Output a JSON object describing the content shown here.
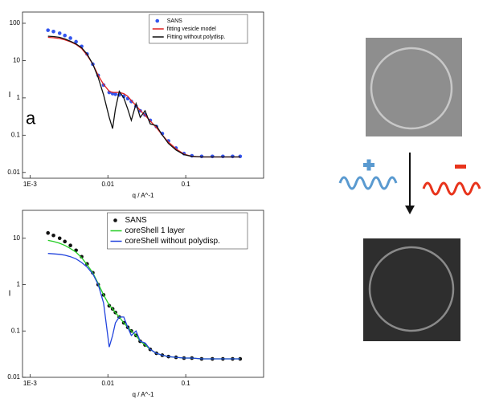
{
  "chart_data": [
    {
      "type": "line",
      "annotation": "a",
      "xlabel": "q / A^-1",
      "ylabel": "I",
      "xscale": "log",
      "yscale": "log",
      "xlim": [
        0.0008,
        1
      ],
      "ylim": [
        0.007,
        200
      ],
      "xticks": [
        {
          "value": 0.001,
          "label": "1E-3"
        },
        0.01,
        0.1
      ],
      "yticks": [
        0.01,
        0.1,
        1,
        10,
        100
      ],
      "legend": "upper right",
      "x": [
        0.0017,
        0.002,
        0.0024,
        0.0028,
        0.0033,
        0.0039,
        0.0046,
        0.0054,
        0.0064,
        0.0075,
        0.0088,
        0.0104,
        0.0115,
        0.0125,
        0.014,
        0.016,
        0.018,
        0.02,
        0.023,
        0.026,
        0.03,
        0.035,
        0.042,
        0.05,
        0.06,
        0.075,
        0.095,
        0.12,
        0.16,
        0.22,
        0.3,
        0.4,
        0.5
      ],
      "series": [
        {
          "name": "SANS",
          "color": "#3355ee",
          "marker": true,
          "values": [
            65,
            60,
            54,
            47,
            40,
            32,
            24,
            15,
            8,
            4,
            2.2,
            1.4,
            1.3,
            1.25,
            1.2,
            1.1,
            0.95,
            0.8,
            0.6,
            0.45,
            0.35,
            0.25,
            0.17,
            0.11,
            0.07,
            0.045,
            0.032,
            0.028,
            0.027,
            0.027,
            0.027,
            0.027,
            0.027
          ]
        },
        {
          "name": "fitting vesicle model",
          "color": "#e02020",
          "marker": false,
          "values": [
            42,
            41,
            39,
            36,
            32,
            27,
            21,
            14,
            8,
            4,
            2.3,
            1.5,
            1.4,
            1.4,
            1.4,
            1.3,
            1.1,
            0.85,
            0.62,
            0.46,
            0.34,
            0.24,
            0.16,
            0.1,
            0.065,
            0.043,
            0.031,
            0.027,
            0.026,
            0.026,
            0.026,
            0.026,
            0.026
          ]
        },
        {
          "name": "Fitting without polydisp.",
          "color": "#111111",
          "marker": false,
          "values": [
            45,
            44,
            42,
            38,
            33,
            28,
            22,
            15,
            8,
            3.5,
            1.2,
            0.3,
            0.15,
            0.5,
            1.5,
            1.0,
            0.5,
            0.25,
            0.7,
            0.3,
            0.45,
            0.2,
            0.18,
            0.1,
            0.06,
            0.04,
            0.03,
            0.027,
            0.026,
            0.026,
            0.026,
            0.026,
            0.026
          ]
        }
      ]
    },
    {
      "type": "line",
      "xlabel": "q / A^-1",
      "ylabel": "I",
      "xscale": "log",
      "yscale": "log",
      "xlim": [
        0.0008,
        1
      ],
      "ylim": [
        0.01,
        40
      ],
      "xticks": [
        {
          "value": 0.001,
          "label": "1E-3"
        },
        0.01,
        0.1
      ],
      "yticks": [
        0.01,
        0.1,
        1,
        10
      ],
      "legend": "upper right",
      "x": [
        0.0017,
        0.002,
        0.0024,
        0.0028,
        0.0033,
        0.0039,
        0.0046,
        0.0054,
        0.0064,
        0.0075,
        0.0088,
        0.0104,
        0.0115,
        0.0125,
        0.014,
        0.016,
        0.018,
        0.02,
        0.023,
        0.026,
        0.03,
        0.035,
        0.042,
        0.05,
        0.06,
        0.075,
        0.095,
        0.12,
        0.16,
        0.22,
        0.3,
        0.4,
        0.5
      ],
      "series": [
        {
          "name": "SANS",
          "color": "#111111",
          "marker": true,
          "values": [
            13,
            11.5,
            10,
            8.5,
            7,
            5.5,
            4,
            2.8,
            1.8,
            1.0,
            0.6,
            0.35,
            0.3,
            0.25,
            0.2,
            0.15,
            0.12,
            0.1,
            0.08,
            0.06,
            0.05,
            0.04,
            0.033,
            0.03,
            0.028,
            0.027,
            0.026,
            0.026,
            0.025,
            0.025,
            0.025,
            0.025,
            0.025
          ]
        },
        {
          "name": "coreShell 1 layer",
          "color": "#22cc22",
          "marker": false,
          "values": [
            9,
            8.5,
            7.8,
            7,
            6,
            5,
            3.8,
            2.7,
            1.8,
            1.05,
            0.6,
            0.36,
            0.3,
            0.25,
            0.2,
            0.15,
            0.12,
            0.1,
            0.08,
            0.06,
            0.05,
            0.04,
            0.033,
            0.03,
            0.028,
            0.027,
            0.026,
            0.026,
            0.025,
            0.025,
            0.025,
            0.025,
            0.025
          ]
        },
        {
          "name": "coreShell without polydisp.",
          "color": "#2244dd",
          "marker": false,
          "values": [
            4.7,
            4.6,
            4.5,
            4.3,
            4,
            3.6,
            3,
            2.4,
            1.7,
            1.0,
            0.4,
            0.045,
            0.08,
            0.15,
            0.2,
            0.2,
            0.12,
            0.08,
            0.1,
            0.06,
            0.055,
            0.04,
            0.033,
            0.03,
            0.028,
            0.027,
            0.026,
            0.026,
            0.025,
            0.025,
            0.025,
            0.025,
            0.025
          ]
        }
      ]
    }
  ]
}
